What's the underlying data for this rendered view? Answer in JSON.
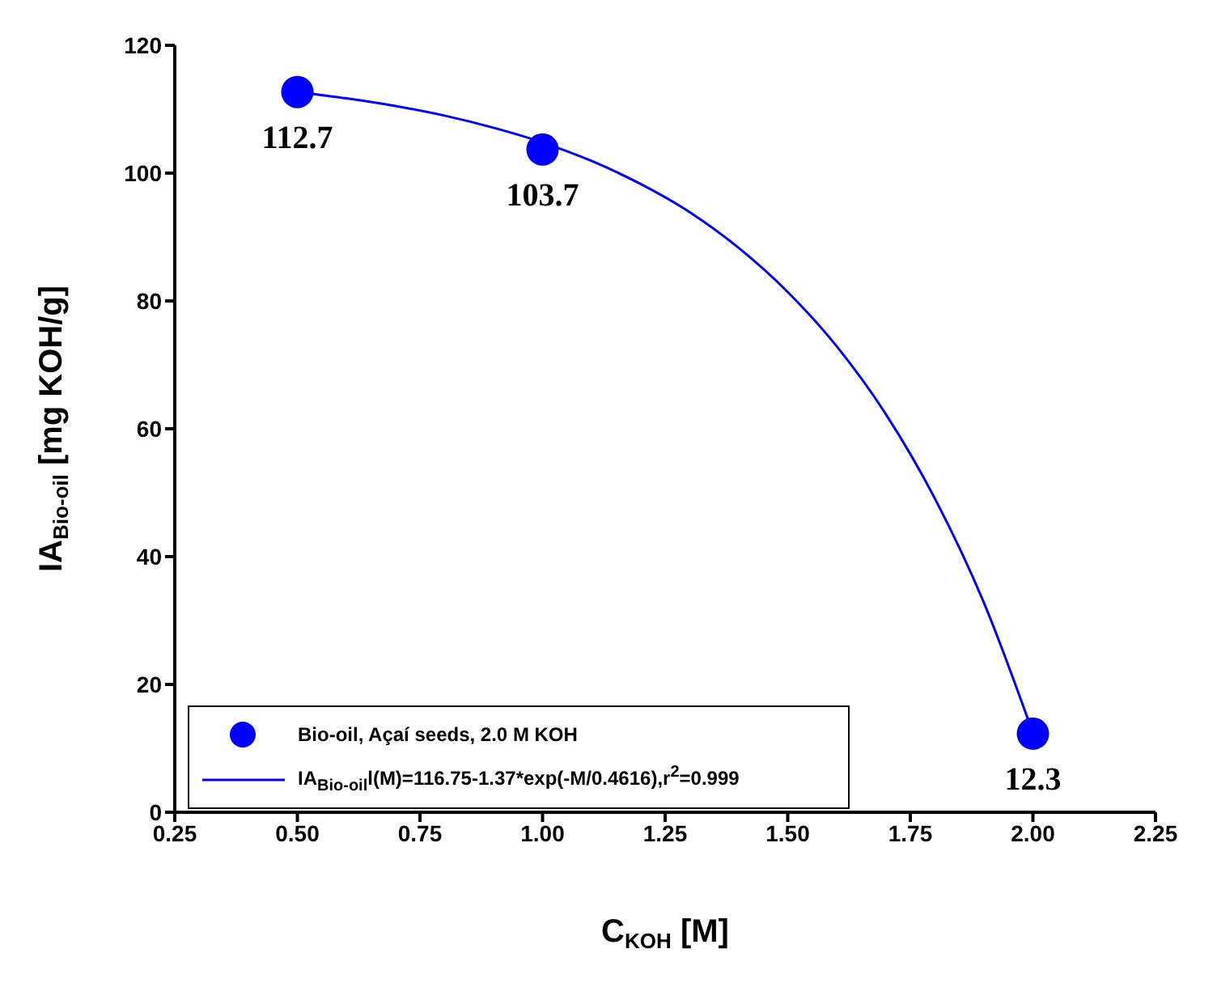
{
  "chart_data": {
    "type": "scatter",
    "xlabel": "C$_{KOH}$ [M]",
    "ylabel": "IA$_{Bio-oil}$ [mg KOH/g]",
    "xlim": [
      0.25,
      2.25
    ],
    "xticks": [
      0.25,
      {
        "value": 0.5,
        "label": "0.50"
      },
      {
        "value": 0.75,
        "label": "0.75"
      },
      {
        "value": 1,
        "label": "1.00"
      },
      1.25,
      {
        "value": 1.5,
        "label": "1.50"
      },
      1.75,
      {
        "value": 2,
        "label": "2.00"
      },
      2.25
    ],
    "ylim": [
      0,
      120
    ],
    "yticks": [
      0,
      20,
      40,
      60,
      80,
      100,
      120
    ],
    "series": [
      {
        "name": "Bio-oil, Açaí seeds, 2.0 M KOH",
        "color": "#0000ff",
        "x": [
          0.5,
          1,
          2
        ],
        "values": [
          112.7,
          103.7,
          12.3
        ],
        "value_labels": [
          "112.7",
          "103.7",
          "12.3"
        ]
      },
      {
        "name": "IA$_{Bio-oil}$l(M)=116.75-1.37*exp(-M/0.4616),r$^{2}$=0.999",
        "type": "line",
        "color": "#0000ff",
        "marker": "none",
        "x": [
          0.5,
          0.6,
          0.7,
          0.8,
          0.9,
          1.0,
          1.1,
          1.2,
          1.3,
          1.4,
          1.5,
          1.6,
          1.7,
          1.8,
          1.9,
          2.0
        ],
        "values": [
          112.7,
          111.7,
          110.5,
          109,
          107.1,
          104.8,
          101.9,
          98.3,
          93.9,
          88.3,
          81.4,
          72.9,
          62.3,
          49.1,
          32.8,
          12.4
        ]
      }
    ],
    "legend": "bottom left",
    "marker": "circle",
    "line_style": "solid"
  }
}
